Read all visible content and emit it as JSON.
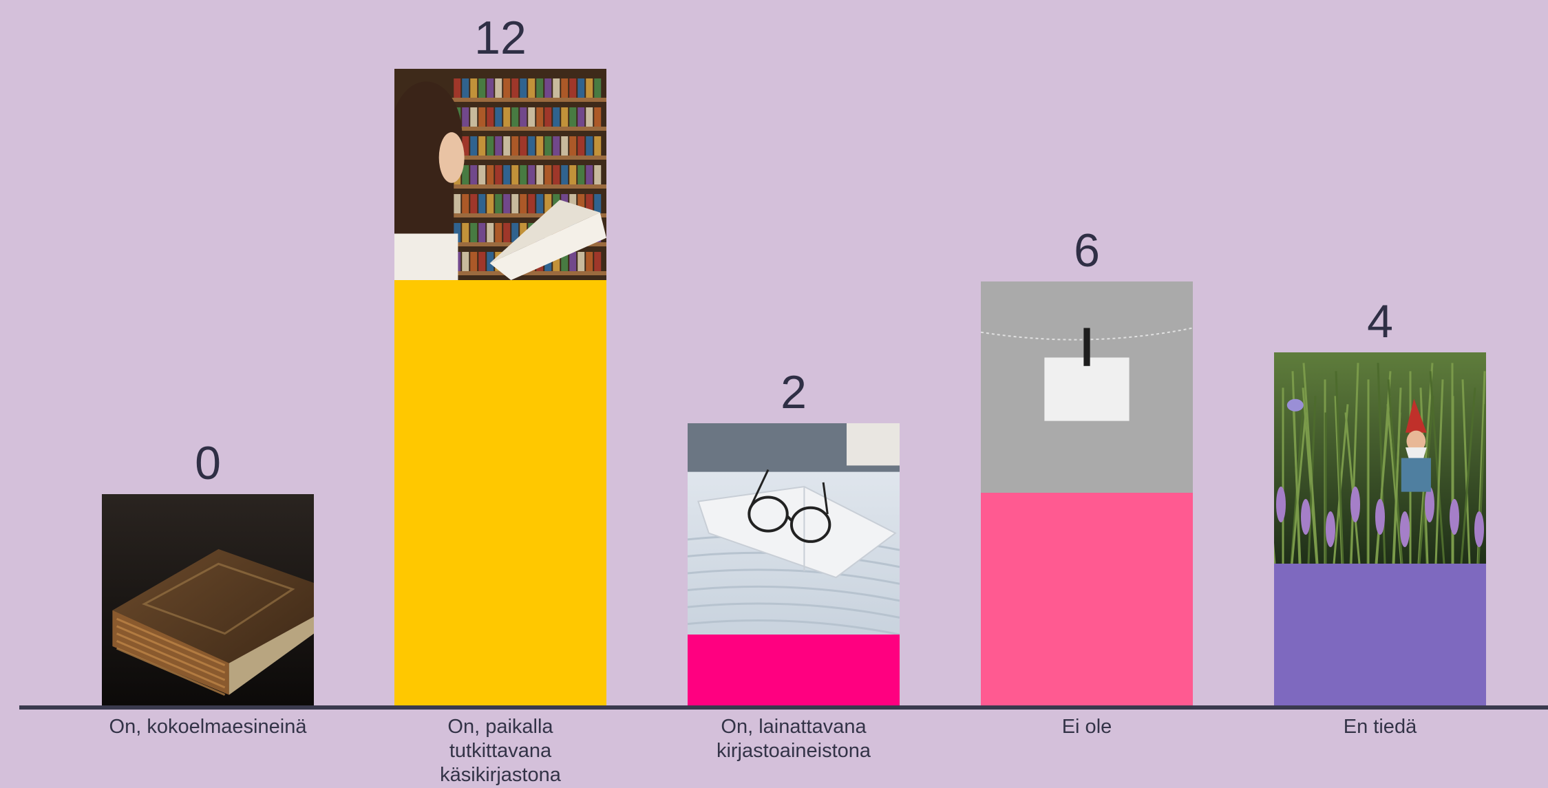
{
  "chart_data": {
    "type": "bar",
    "categories": [
      [
        "On, kokoelmaesineinä"
      ],
      [
        "On, paikalla",
        "tutkittavana",
        "käsikirjastona"
      ],
      [
        "On, lainattavana",
        "kirjastoaineistona"
      ],
      [
        "Ei ole"
      ],
      [
        "En tiedä"
      ]
    ],
    "values": [
      0,
      12,
      2,
      6,
      4
    ],
    "ylim": [
      0,
      12
    ],
    "grid": false,
    "legend": "none",
    "bar_colors": [
      "#d4c0da",
      "#ffc800",
      "#ff0080",
      "#ff5a91",
      "#7e69bf"
    ],
    "picture_icons": [
      "old-book-photo",
      "library-reading-photo",
      "glasses-on-book-photo",
      "blank-note-on-line-photo",
      "garden-gnome-photo"
    ]
  },
  "colors": {
    "background": "#d4c0da",
    "axis": "#3a3a4e",
    "text": "#2f2f45"
  }
}
